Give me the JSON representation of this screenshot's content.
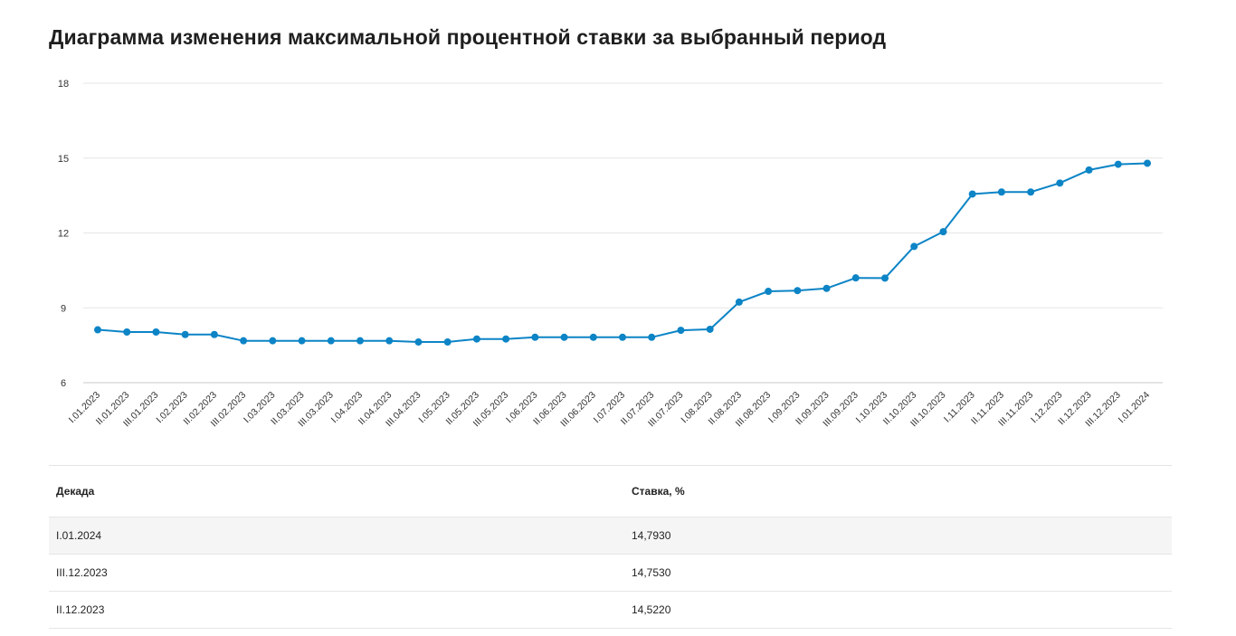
{
  "title": "Диаграмма изменения максимальной процентной ставки за выбранный период",
  "chart_data": {
    "type": "line",
    "categories": [
      "I.01.2023",
      "II.01.2023",
      "III.01.2023",
      "I.02.2023",
      "II.02.2023",
      "III.02.2023",
      "I.03.2023",
      "II.03.2023",
      "III.03.2023",
      "I.04.2023",
      "II.04.2023",
      "III.04.2023",
      "I.05.2023",
      "II.05.2023",
      "III.05.2023",
      "I.06.2023",
      "II.06.2023",
      "III.06.2023",
      "I.07.2023",
      "II.07.2023",
      "III.07.2023",
      "I.08.2023",
      "II.08.2023",
      "III.08.2023",
      "I.09.2023",
      "II.09.2023",
      "III.09.2023",
      "I.10.2023",
      "II.10.2023",
      "III.10.2023",
      "I.11.2023",
      "II.11.2023",
      "III.11.2023",
      "I.12.2023",
      "II.12.2023",
      "III.12.2023",
      "I.01.2024"
    ],
    "values": [
      8.12,
      8.03,
      8.03,
      7.93,
      7.93,
      7.68,
      7.68,
      7.68,
      7.68,
      7.68,
      7.68,
      7.63,
      7.63,
      7.75,
      7.75,
      7.82,
      7.82,
      7.82,
      7.82,
      7.82,
      8.1,
      8.14,
      9.23,
      9.66,
      9.69,
      9.78,
      10.2,
      10.19,
      11.46,
      12.05,
      13.56,
      13.64,
      13.64,
      14.0,
      14.522,
      14.753,
      14.793
    ],
    "ylim": [
      6,
      18
    ],
    "yticks": [
      6,
      9,
      12,
      15,
      18
    ],
    "grid": true,
    "color": "#0c84c6"
  },
  "table": {
    "headers": [
      "Декада",
      "Ставка, %"
    ],
    "rows": [
      [
        "I.01.2024",
        "14,7930"
      ],
      [
        "III.12.2023",
        "14,7530"
      ],
      [
        "II.12.2023",
        "14,5220"
      ]
    ]
  }
}
